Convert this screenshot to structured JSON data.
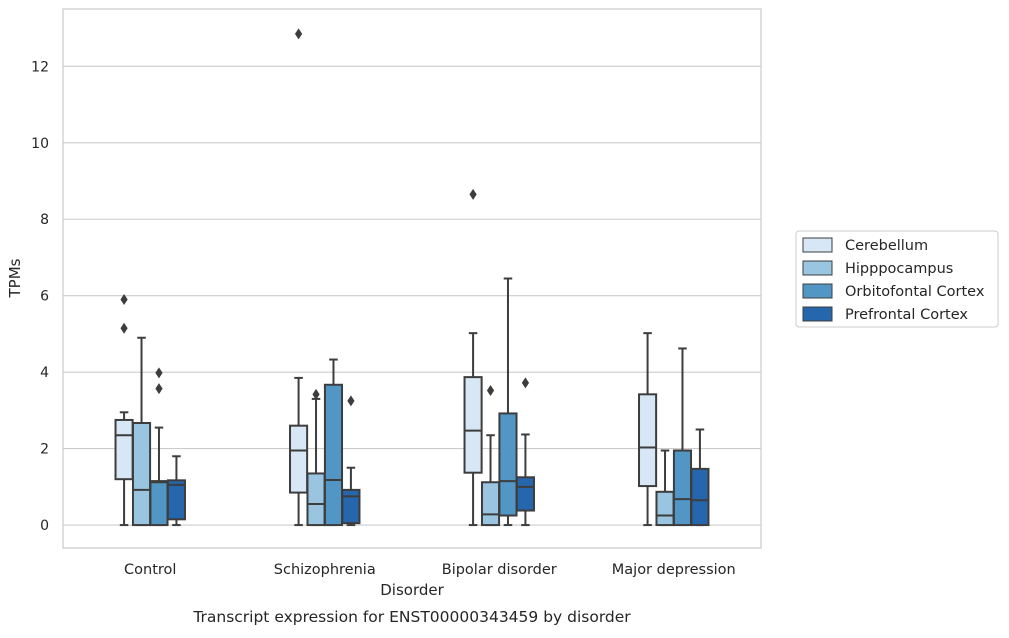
{
  "chart_data": {
    "type": "boxplot",
    "title": "",
    "caption": "Transcript expression for ENST00000343459 by disorder",
    "xlabel": "Disorder",
    "ylabel": "TPMs",
    "ylim": [
      -0.6,
      13.5
    ],
    "yticks": [
      0,
      2,
      4,
      6,
      8,
      10,
      12
    ],
    "grid": "horizontal",
    "legend_position": "right",
    "categories": [
      "Control",
      "Schizophrenia",
      "Bipolar disorder",
      "Major depression"
    ],
    "series": [
      {
        "name": "Cerebellum",
        "color": "#d8e7f5",
        "boxes": [
          {
            "whislo": 0.0,
            "q1": 1.2,
            "med": 2.35,
            "q3": 2.75,
            "whishi": 2.95,
            "fliers": [
              5.9,
              5.15
            ]
          },
          {
            "whislo": 0.0,
            "q1": 0.85,
            "med": 1.95,
            "q3": 2.6,
            "whishi": 3.85,
            "fliers": [
              12.85
            ]
          },
          {
            "whislo": 0.0,
            "q1": 1.37,
            "med": 2.47,
            "q3": 3.87,
            "whishi": 5.02,
            "fliers": [
              8.65
            ]
          },
          {
            "whislo": 0.0,
            "q1": 1.02,
            "med": 2.03,
            "q3": 3.42,
            "whishi": 5.02,
            "fliers": []
          }
        ]
      },
      {
        "name": "Hipppocampus",
        "color": "#9ac5e0",
        "boxes": [
          {
            "whislo": 0.0,
            "q1": 0.0,
            "med": 0.92,
            "q3": 2.67,
            "whishi": 4.9,
            "fliers": []
          },
          {
            "whislo": 0.0,
            "q1": 0.0,
            "med": 0.55,
            "q3": 1.35,
            "whishi": 3.3,
            "fliers": [
              3.42
            ]
          },
          {
            "whislo": 0.0,
            "q1": 0.0,
            "med": 0.28,
            "q3": 1.12,
            "whishi": 2.35,
            "fliers": [
              3.52
            ]
          },
          {
            "whislo": 0.0,
            "q1": 0.0,
            "med": 0.25,
            "q3": 0.87,
            "whishi": 1.95,
            "fliers": []
          }
        ]
      },
      {
        "name": "Orbitofontal Cortex",
        "color": "#5296c6",
        "boxes": [
          {
            "whislo": 0.0,
            "q1": 0.0,
            "med": 1.12,
            "q3": 1.15,
            "whishi": 2.55,
            "fliers": [
              3.98,
              3.57
            ]
          },
          {
            "whislo": 0.0,
            "q1": 0.0,
            "med": 1.18,
            "q3": 3.67,
            "whishi": 4.33,
            "fliers": []
          },
          {
            "whislo": 0.0,
            "q1": 0.25,
            "med": 1.15,
            "q3": 2.92,
            "whishi": 6.45,
            "fliers": []
          },
          {
            "whislo": 0.0,
            "q1": 0.0,
            "med": 0.68,
            "q3": 1.95,
            "whishi": 4.62,
            "fliers": []
          }
        ]
      },
      {
        "name": "Prefrontal Cortex",
        "color": "#2666ac",
        "boxes": [
          {
            "whislo": 0.0,
            "q1": 0.15,
            "med": 1.05,
            "q3": 1.17,
            "whishi": 1.8,
            "fliers": []
          },
          {
            "whislo": 0.0,
            "q1": 0.05,
            "med": 0.75,
            "q3": 0.92,
            "whishi": 1.5,
            "fliers": [
              3.25
            ]
          },
          {
            "whislo": 0.0,
            "q1": 0.38,
            "med": 1.0,
            "q3": 1.25,
            "whishi": 2.37,
            "fliers": [
              3.72
            ]
          },
          {
            "whislo": 0.0,
            "q1": 0.0,
            "med": 0.65,
            "q3": 1.47,
            "whishi": 2.5,
            "fliers": []
          }
        ]
      }
    ]
  }
}
